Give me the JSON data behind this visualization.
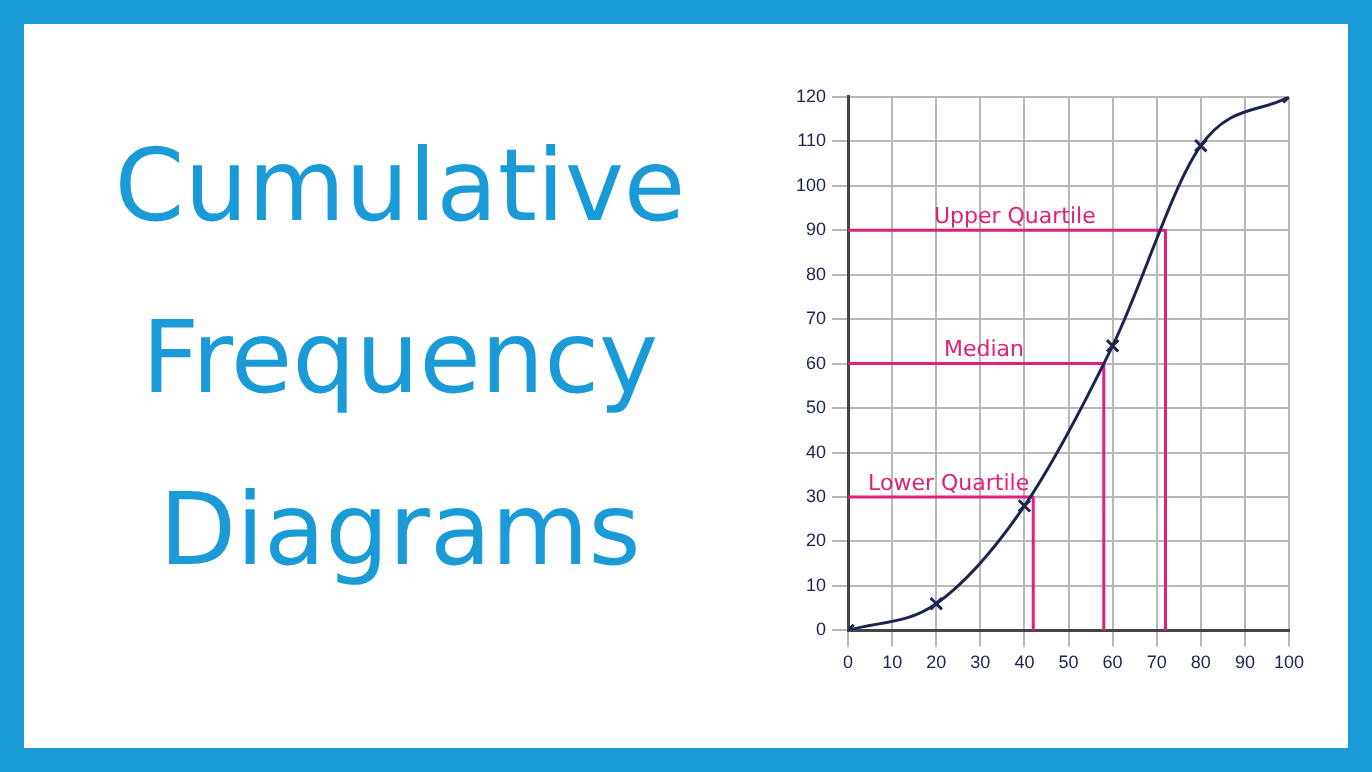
{
  "chart_data": {
    "type": "line",
    "title": "Cumulative Frequency Diagrams",
    "xlim": [
      0,
      100
    ],
    "xticks": [
      0,
      10,
      20,
      30,
      40,
      50,
      60,
      70,
      80,
      90,
      100
    ],
    "ylim": [
      0,
      120
    ],
    "yticks": [
      0,
      10,
      20,
      30,
      40,
      50,
      60,
      70,
      80,
      90,
      100,
      110,
      120
    ],
    "grid": true,
    "legend": false,
    "series": [
      {
        "color": "#1c2452",
        "marker": "cross",
        "x": [
          0,
          20,
          40,
          60,
          80,
          100
        ],
        "values": [
          0,
          6,
          28,
          64,
          109,
          120
        ]
      },
      {
        "name": "Lower Quartile",
        "color": "#e0207a",
        "marker": "none",
        "x": [
          0,
          42,
          42
        ],
        "values": [
          30,
          30,
          0
        ]
      },
      {
        "name": "Median",
        "color": "#e0207a",
        "marker": "none",
        "x": [
          0,
          58,
          58
        ],
        "values": [
          60,
          60,
          0
        ]
      },
      {
        "name": "Upper Quartile",
        "color": "#e0207a",
        "marker": "none",
        "x": [
          0,
          72,
          72
        ],
        "values": [
          90,
          90,
          0
        ]
      }
    ]
  }
}
